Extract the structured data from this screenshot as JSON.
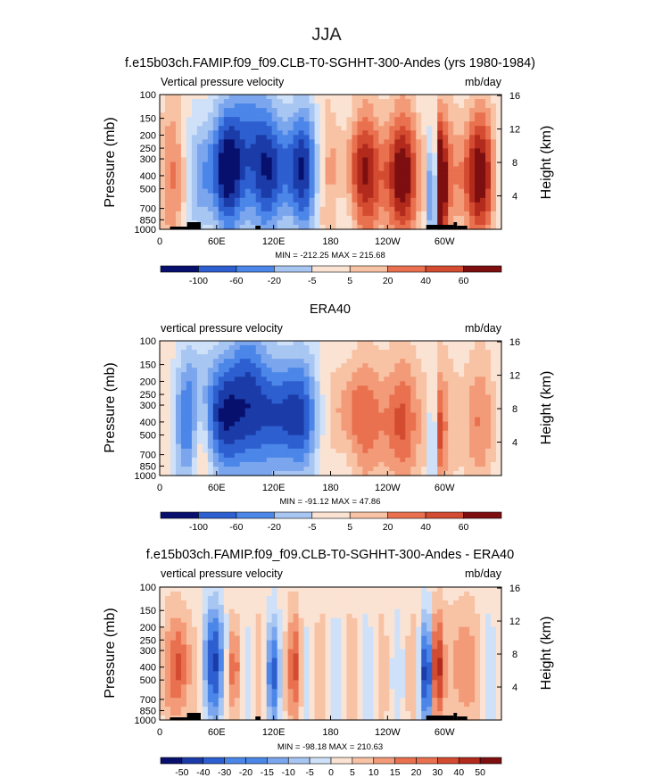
{
  "figure": {
    "title": "JJA"
  },
  "colorbar_levels": {
    "main": [
      "-100",
      "-60",
      "-20",
      "-5",
      "5",
      "20",
      "40",
      "60"
    ],
    "diff": [
      "-50",
      "-40",
      "-30",
      "-20",
      "-15",
      "-10",
      "-5",
      "0",
      "5",
      "10",
      "15",
      "20",
      "30",
      "40",
      "50"
    ]
  },
  "colors": {
    "scale": [
      "#08106e",
      "#1b3ca8",
      "#2d5fd0",
      "#4b86e8",
      "#7ba6ee",
      "#a8c6f2",
      "#cfe1f8",
      "#fbe3d4",
      "#f8c2a4",
      "#f39b78",
      "#e9714f",
      "#d34b30",
      "#b22a1c",
      "#7d0f10"
    ],
    "land_mask": "#000000"
  },
  "chart_data": [
    {
      "type": "heatmap",
      "title": "f.e15b03ch.FAMIP.f09_f09.CLB-T0-SGHHT-300-Andes (yrs 1980-1984)",
      "left_label": "Vertical pressure velocity",
      "right_label": "mb/day",
      "ylabel": "Pressure (mb)",
      "y2label": "Height (km)",
      "xticks": [
        "0",
        "60E",
        "120E",
        "180",
        "120W",
        "60W"
      ],
      "yticks": [
        "100",
        "150",
        "200",
        "250",
        "300",
        "400",
        "500",
        "700",
        "850",
        "1000"
      ],
      "y2ticks": [
        "16",
        "12",
        "8",
        "4"
      ],
      "stats": "MIN = -212.25   MAX = 215.68",
      "colorbar": "main"
    },
    {
      "type": "heatmap",
      "title": "ERA40",
      "left_label": "vertical pressure velocity",
      "right_label": "mb/day",
      "ylabel": "Pressure (mb)",
      "y2label": "Height (km)",
      "xticks": [
        "0",
        "60E",
        "120E",
        "180",
        "120W",
        "60W"
      ],
      "yticks": [
        "100",
        "150",
        "200",
        "250",
        "300",
        "400",
        "500",
        "700",
        "850",
        "1000"
      ],
      "y2ticks": [
        "16",
        "12",
        "8",
        "4"
      ],
      "stats": "MIN = -91.12   MAX = 47.86",
      "colorbar": "main"
    },
    {
      "type": "heatmap",
      "title": "f.e15b03ch.FAMIP.f09_f09.CLB-T0-SGHHT-300-Andes - ERA40",
      "left_label": "vertical pressure velocity",
      "right_label": "mb/day",
      "ylabel": "Pressure (mb)",
      "y2label": "Height (km)",
      "xticks": [
        "0",
        "60E",
        "120E",
        "180",
        "120W",
        "60W"
      ],
      "yticks": [
        "100",
        "150",
        "200",
        "250",
        "300",
        "400",
        "500",
        "700",
        "850",
        "1000"
      ],
      "y2ticks": [
        "16",
        "12",
        "8",
        "4"
      ],
      "stats": "MIN = -98.18   MAX = 210.63",
      "colorbar": "diff"
    }
  ]
}
